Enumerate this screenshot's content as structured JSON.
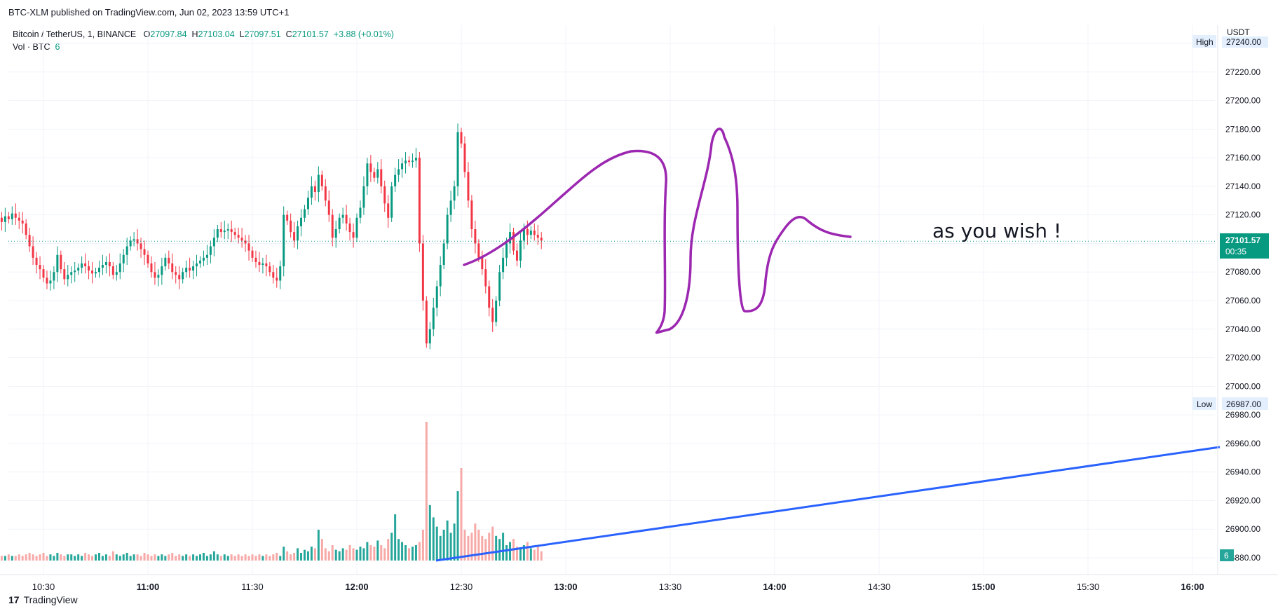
{
  "publish_line": "BTC-XLM published on TradingView.com, Jun 02, 2023 13:59 UTC+1",
  "legend": {
    "symbol": "Bitcoin / TetherUS, 1, BINANCE",
    "o_label": "O",
    "o": "27097.84",
    "h_label": "H",
    "h": "27103.04",
    "l_label": "L",
    "l": "27097.51",
    "c_label": "C",
    "c": "27101.57",
    "change": "+3.88 (+0.01%)",
    "vol_label": "Vol · BTC",
    "vol_value": "6"
  },
  "annotation_text": "as you wish !",
  "footer_brand": "TradingView",
  "colors": {
    "up": "#089981",
    "down": "#F23645",
    "up_vol": "#26A69A",
    "down_vol": "#F7A9A7",
    "drawing": "#9C27B0",
    "trendline": "#2962FF",
    "price_line": "#089981"
  },
  "chart_data": {
    "type": "candlestick",
    "title": "Bitcoin / TetherUS, 1, BINANCE",
    "currency": "USDT",
    "y_ticks": [
      "27240.00",
      "27220.00",
      "27200.00",
      "27180.00",
      "27160.00",
      "27140.00",
      "27120.00",
      "27100.00",
      "27080.00",
      "27060.00",
      "27040.00",
      "27020.00",
      "27000.00",
      "26980.00",
      "26960.00",
      "26940.00",
      "26920.00",
      "26900.00",
      "26880.00"
    ],
    "ylim": [
      26870,
      27250
    ],
    "x_ticks": [
      "10:30",
      "11:00",
      "11:30",
      "12:00",
      "12:30",
      "13:00",
      "13:30",
      "14:00",
      "14:30",
      "15:00",
      "15:30",
      "16:00"
    ],
    "high_label": "High",
    "high_value": "27240.00",
    "low_label": "Low",
    "low_value": "26987.00",
    "last_price": "27101.57",
    "countdown": "00:35",
    "volume_last": "6",
    "start_time": "10:15",
    "interval_minutes": 1,
    "closes": [
      27120,
      27124,
      27118,
      27115,
      27119,
      27117,
      27121,
      27118,
      27116,
      27114,
      27106,
      27098,
      27090,
      27085,
      27082,
      27076,
      27072,
      27074,
      27080,
      27092,
      27082,
      27075,
      27078,
      27080,
      27081,
      27083,
      27086,
      27084,
      27081,
      27079,
      27080,
      27083,
      27085,
      27087,
      27084,
      27078,
      27080,
      27086,
      27092,
      27098,
      27102,
      27103,
      27100,
      27096,
      27092,
      27086,
      27080,
      27076,
      27078,
      27084,
      27090,
      27086,
      27080,
      27078,
      27075,
      27080,
      27083,
      27081,
      27084,
      27086,
      27088,
      27090,
      27092,
      27098,
      27104,
      27110,
      27108,
      27109,
      27110,
      27108,
      27106,
      27104,
      27102,
      27100,
      27095,
      27090,
      27087,
      27085,
      27086,
      27084,
      27080,
      27076,
      27074,
      27084,
      27120,
      27116,
      27108,
      27102,
      27112,
      27118,
      27124,
      27132,
      27140,
      27136,
      27148,
      27140,
      27130,
      27120,
      27104,
      27110,
      27118,
      27120,
      27114,
      27108,
      27104,
      27118,
      27125,
      27140,
      27156,
      27150,
      27146,
      27152,
      27140,
      27128,
      27118,
      27140,
      27148,
      27152,
      27156,
      27158,
      27157,
      27158,
      27160,
      27100,
      27060,
      27030,
      27040,
      27055,
      27070,
      27085,
      27100,
      27120,
      27130,
      27140,
      27178,
      27170,
      27150,
      27130,
      27110,
      27100,
      27090,
      27082,
      27070,
      27055,
      27045,
      27060,
      27080,
      27090,
      27100,
      27108,
      27095,
      27088,
      27102,
      27110,
      27106,
      27109,
      27106,
      27104,
      27102
    ],
    "volumes": [
      4,
      3,
      4,
      3,
      3,
      4,
      3,
      3,
      4,
      3,
      4,
      5,
      4,
      3,
      4,
      5,
      3,
      4,
      3,
      5,
      4,
      3,
      4,
      4,
      3,
      4,
      3,
      5,
      4,
      3,
      4,
      5,
      3,
      4,
      3,
      6,
      4,
      3,
      4,
      5,
      3,
      4,
      4,
      3,
      5,
      4,
      3,
      4,
      3,
      4,
      3,
      4,
      5,
      3,
      4,
      3,
      4,
      3,
      4,
      3,
      4,
      5,
      3,
      4,
      6,
      4,
      3,
      4,
      3,
      4,
      3,
      4,
      3,
      4,
      3,
      4,
      3,
      4,
      3,
      4,
      3,
      4,
      5,
      3,
      9,
      6,
      4,
      5,
      8,
      5,
      7,
      6,
      9,
      8,
      20,
      14,
      8,
      6,
      10,
      7,
      6,
      8,
      7,
      10,
      8,
      7,
      9,
      8,
      12,
      10,
      9,
      13,
      10,
      8,
      14,
      18,
      30,
      14,
      12,
      10,
      8,
      9,
      10,
      12,
      20,
      90,
      36,
      28,
      22,
      16,
      20,
      26,
      18,
      24,
      45,
      60,
      20,
      16,
      18,
      24,
      20,
      16,
      14,
      18,
      22,
      16,
      14,
      18,
      10,
      12,
      14,
      9,
      8,
      10,
      12,
      8,
      7,
      9,
      6
    ]
  }
}
